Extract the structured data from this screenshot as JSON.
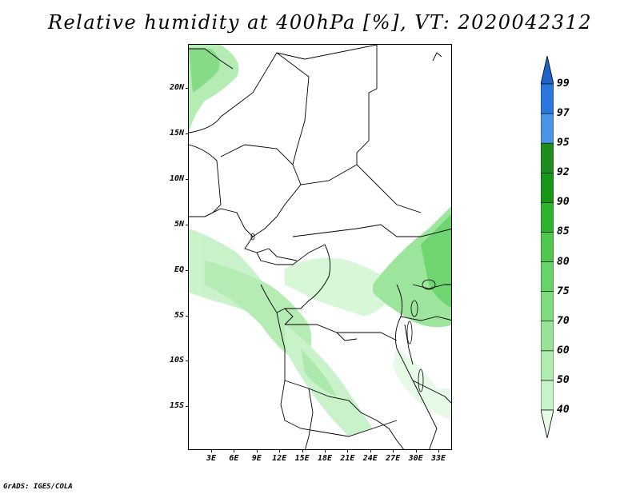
{
  "title": "Relative humidity at 400hPa [%], VT: 2020042312",
  "credit": "GrADS: IGES/COLA",
  "latitude_labels": [
    "20N",
    "15N",
    "10N",
    "5N",
    "EQ",
    "5S",
    "10S",
    "15S"
  ],
  "longitude_labels": [
    "3E",
    "6E",
    "9E",
    "12E",
    "15E",
    "18E",
    "21E",
    "24E",
    "27E",
    "30E",
    "33E"
  ],
  "colorbar": {
    "levels": [
      "40",
      "50",
      "60",
      "70",
      "75",
      "80",
      "85",
      "90",
      "92",
      "95",
      "97",
      "99"
    ],
    "colors": [
      "#e6fae6",
      "#c8f2c8",
      "#b0ebb0",
      "#98e398",
      "#80db80",
      "#68d368",
      "#50c850",
      "#30b430",
      "#189618",
      "#1e8c1e",
      "#4c94e6",
      "#2a78dc",
      "#1e64c8"
    ]
  }
}
